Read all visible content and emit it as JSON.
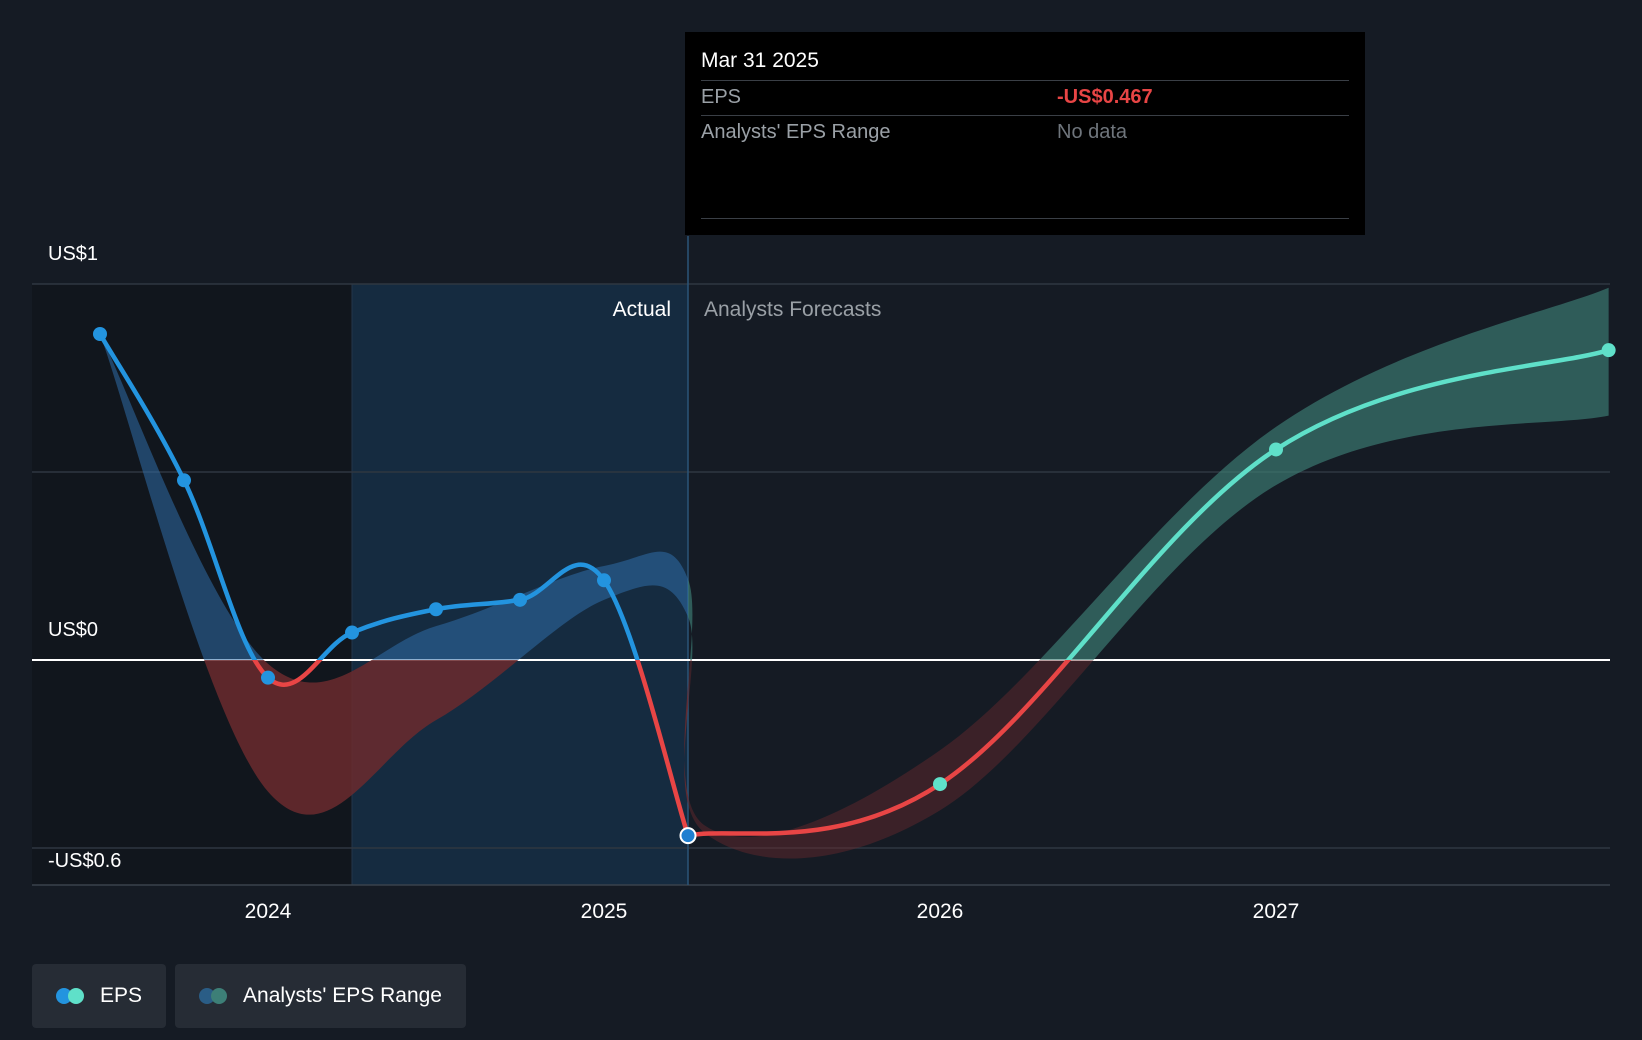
{
  "colors": {
    "background": "#151b24",
    "eps_positive": "#2394df",
    "eps_negative": "#e84545",
    "eps_forecast": "#5fe0c9",
    "band_actual": "#2f6ea8",
    "band_negative": "#6b2a2e",
    "band_forecast": "#3d7f77",
    "actual_shade": "#16314a"
  },
  "tooltip": {
    "date": "Mar 31 2025",
    "eps_label": "EPS",
    "eps_value": "-US$0.467",
    "range_label": "Analysts' EPS Range",
    "range_value": "No data"
  },
  "legend": {
    "eps_label": "EPS",
    "range_label": "Analysts' EPS Range"
  },
  "chart_data": {
    "type": "line",
    "title": "",
    "xlabel": "",
    "ylabel": "",
    "x_range": [
      2023.3,
      2027.99
    ],
    "ylim": [
      -0.6,
      1.0
    ],
    "y_ticks": [
      {
        "value": 1.0,
        "label": "US$1"
      },
      {
        "value": 0.0,
        "label": "US$0"
      },
      {
        "value": -0.6,
        "label": "-US$0.6"
      }
    ],
    "x_ticks": [
      {
        "value": 2024.0,
        "label": "2024"
      },
      {
        "value": 2025.0,
        "label": "2025"
      },
      {
        "value": 2026.0,
        "label": "2026"
      },
      {
        "value": 2027.0,
        "label": "2027"
      }
    ],
    "section_labels": {
      "actual": "Actual",
      "forecast": "Analysts Forecasts"
    },
    "actual_shade_range": [
      2024.25,
      2025.25
    ],
    "divider_x": 2025.25,
    "series": [
      {
        "name": "EPS (actual)",
        "points": [
          {
            "x": 2023.5,
            "y": 0.867
          },
          {
            "x": 2023.75,
            "y": 0.478
          },
          {
            "x": 2024.0,
            "y": -0.047
          },
          {
            "x": 2024.25,
            "y": 0.073
          },
          {
            "x": 2024.5,
            "y": 0.135
          },
          {
            "x": 2024.75,
            "y": 0.16
          },
          {
            "x": 2025.0,
            "y": 0.212
          },
          {
            "x": 2025.25,
            "y": -0.467
          }
        ]
      },
      {
        "name": "EPS (forecast)",
        "points": [
          {
            "x": 2025.25,
            "y": -0.467
          },
          {
            "x": 2026.0,
            "y": -0.33
          },
          {
            "x": 2027.0,
            "y": 0.56
          },
          {
            "x": 2027.99,
            "y": 0.824
          }
        ]
      }
    ],
    "range_band": [
      {
        "x": 2023.5,
        "low": 0.867,
        "high": 0.867
      },
      {
        "x": 2024.0,
        "low": -0.35,
        "high": -0.01
      },
      {
        "x": 2024.5,
        "low": -0.16,
        "high": 0.09
      },
      {
        "x": 2025.0,
        "low": 0.16,
        "high": 0.25
      },
      {
        "x": 2025.25,
        "low": 0.115,
        "high": 0.215
      },
      {
        "x": 2025.3,
        "low": -0.46,
        "high": -0.44
      },
      {
        "x": 2026.0,
        "low": -0.4,
        "high": -0.24
      },
      {
        "x": 2027.0,
        "low": 0.465,
        "high": 0.62
      },
      {
        "x": 2027.99,
        "low": 0.65,
        "high": 0.99
      }
    ]
  }
}
